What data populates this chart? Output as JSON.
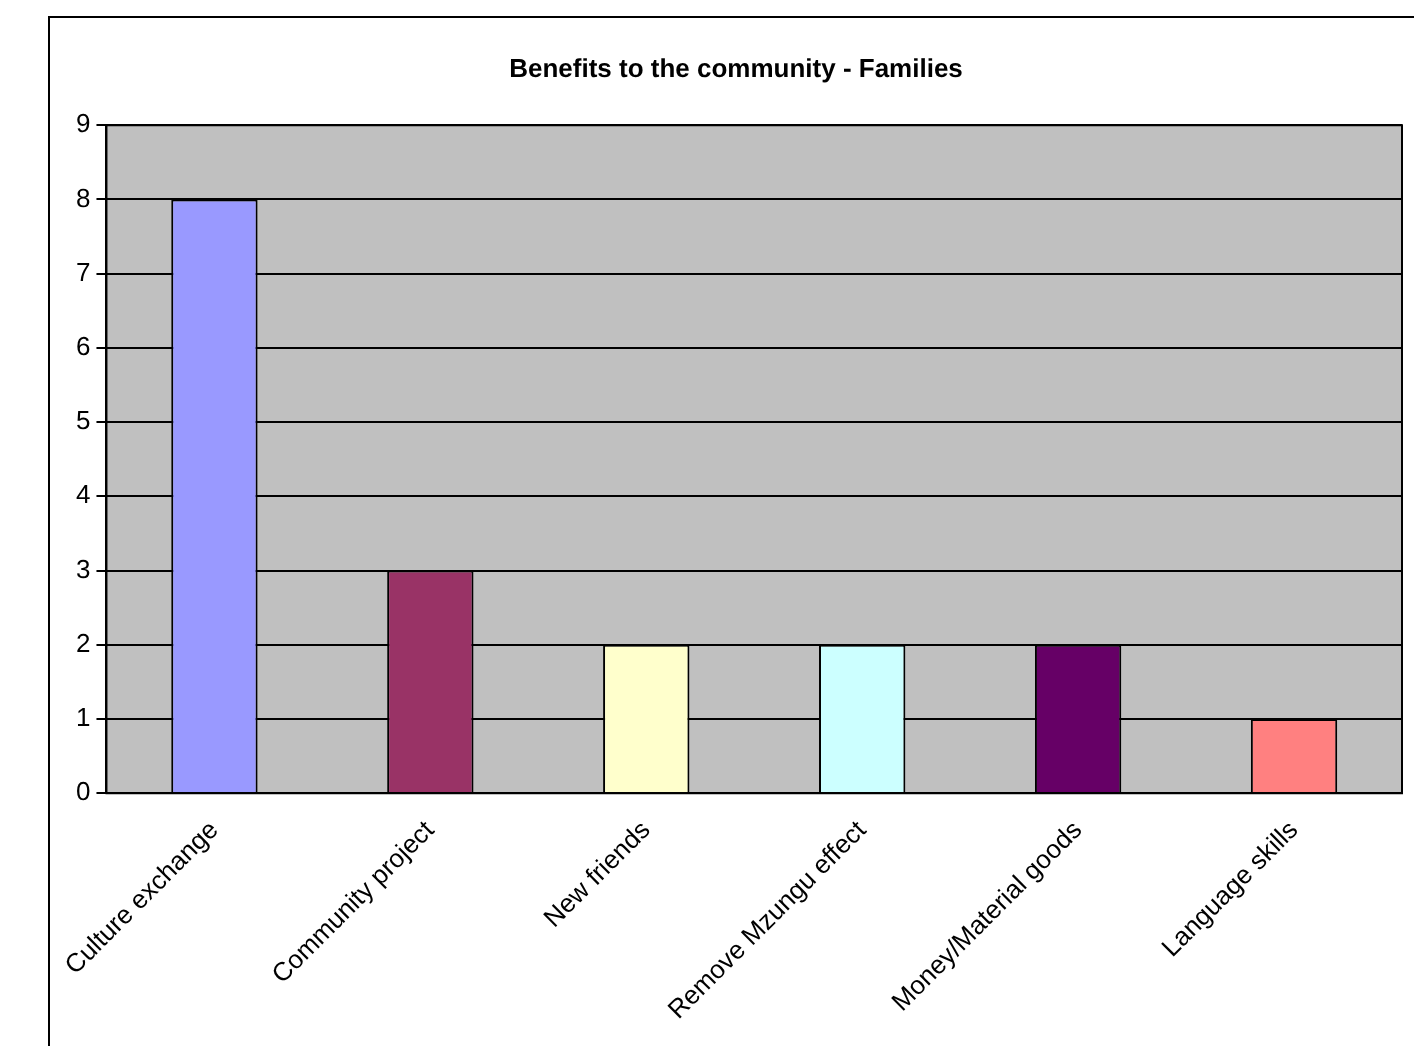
{
  "chart_data": {
    "type": "bar",
    "title": "Benefits to the community - Families",
    "categories": [
      "Culture exchange",
      "Community project",
      "New friends",
      "Remove Mzungu effect",
      "Money/Material goods",
      "Language skills"
    ],
    "values": [
      8,
      3,
      2,
      2,
      2,
      1
    ],
    "colors": [
      "#9999ff",
      "#993366",
      "#ffffcc",
      "#ccffff",
      "#660066",
      "#ff8080"
    ],
    "ylim": [
      0,
      9
    ],
    "yticks": [
      0,
      1,
      2,
      3,
      4,
      5,
      6,
      7,
      8,
      9
    ],
    "grid": "y",
    "legend": false
  }
}
